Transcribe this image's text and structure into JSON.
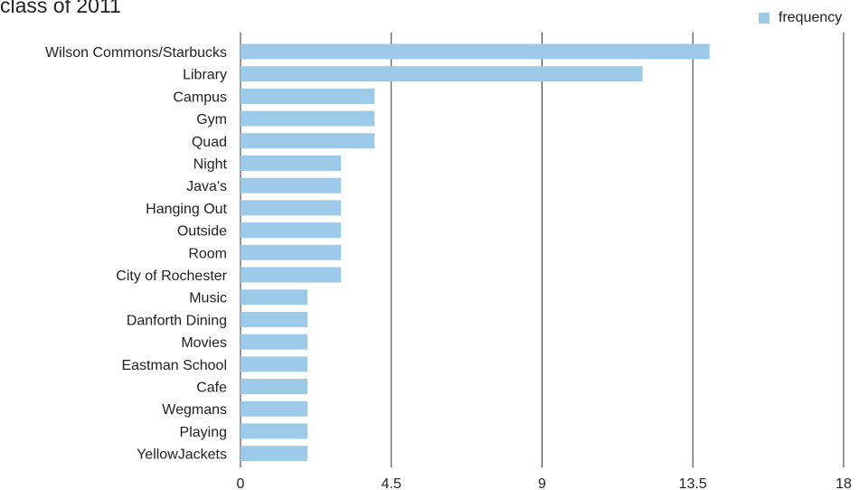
{
  "chart_data": {
    "type": "bar",
    "orientation": "horizontal",
    "title": "class of 2011",
    "legend": {
      "position": "top-right",
      "entries": [
        "frequency"
      ]
    },
    "categories": [
      "Wilson Commons/Starbucks",
      "Library",
      "Campus",
      "Gym",
      "Quad",
      "Night",
      "Java's",
      "Hanging Out",
      "Outside",
      "Room",
      "City of Rochester",
      "Music",
      "Danforth Dining",
      "Movies",
      "Eastman School",
      "Cafe",
      "Wegmans",
      "Playing",
      "YellowJackets"
    ],
    "series": [
      {
        "name": "frequency",
        "values": [
          14,
          12,
          4,
          4,
          4,
          3,
          3,
          3,
          3,
          3,
          3,
          2,
          2,
          2,
          2,
          2,
          2,
          2,
          2
        ]
      }
    ],
    "xlim": [
      0,
      18
    ],
    "xticks": [
      "0",
      "4.5",
      "9",
      "13.5",
      "18"
    ],
    "xtick_values": [
      0,
      4.5,
      9,
      13.5,
      18
    ],
    "grid": "vertical",
    "colors": {
      "bar": "#9ecae9",
      "grid": "#333333"
    }
  }
}
